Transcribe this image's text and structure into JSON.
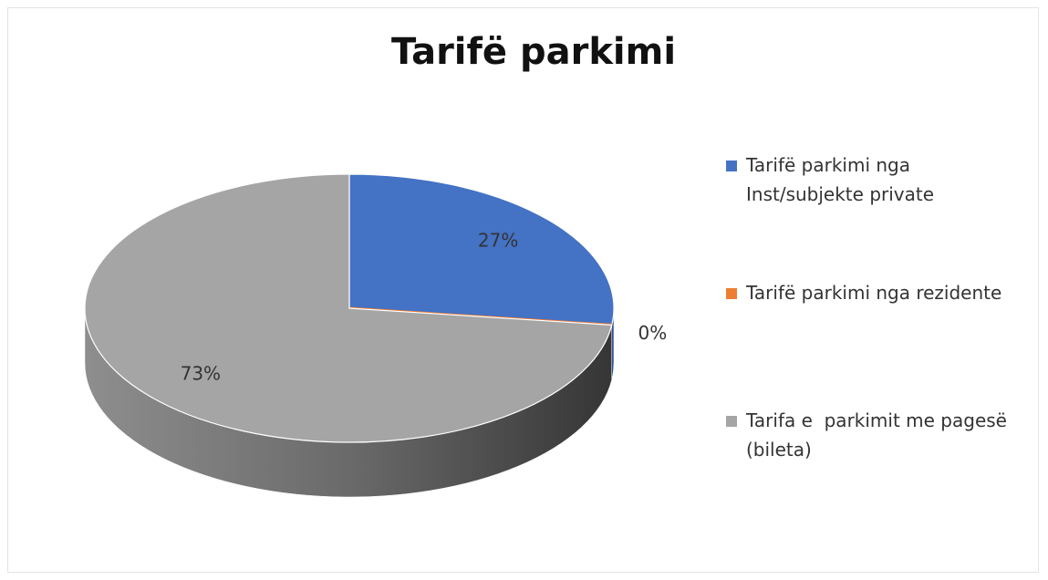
{
  "chart_data": {
    "type": "pie",
    "title": "Tarifë parkimi",
    "categories": [
      "Tarifë parkimi nga Inst/subjekte private",
      "Tarifë parkimi nga rezidente",
      "Tarifa e  parkimit me pagesë (bileta)"
    ],
    "values": [
      27,
      0,
      73
    ],
    "value_labels": [
      "27%",
      "0%",
      "73%"
    ],
    "colors": [
      "#4472c4",
      "#ed7d31",
      "#a5a5a5"
    ],
    "legend": "right"
  }
}
